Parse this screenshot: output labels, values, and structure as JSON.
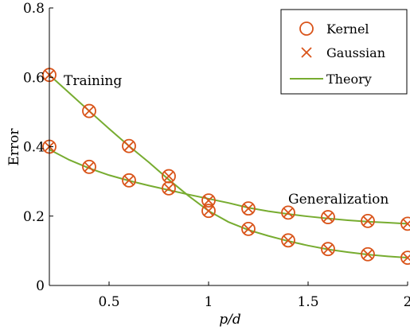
{
  "chart_data": {
    "type": "line",
    "xlabel": "p/d",
    "ylabel": "Error",
    "xlim": [
      0.2,
      2.0
    ],
    "ylim": [
      0,
      0.8
    ],
    "xticks": [
      0.5,
      1,
      1.5,
      2
    ],
    "xtick_labels": [
      "0.5",
      "1",
      "1.5",
      "2"
    ],
    "yticks": [
      0,
      0.2,
      0.4,
      0.6,
      0.8
    ],
    "ytick_labels": [
      "0",
      "0.2",
      "0.4",
      "0.6",
      "0.8"
    ],
    "grid": false,
    "legend_position": "top-right",
    "legend": [
      {
        "name": "Kernel",
        "marker": "circle"
      },
      {
        "name": "Gaussian",
        "marker": "x"
      },
      {
        "name": "Theory",
        "marker": "line"
      }
    ],
    "annotations": [
      {
        "text": "Training",
        "x": 0.24,
        "y": 0.58
      },
      {
        "text": "Generalization",
        "x": 1.44,
        "y": 0.235
      }
    ],
    "colors": {
      "marker": "#d9541a",
      "theory": "#77ac30"
    },
    "series": [
      {
        "curve": "Training",
        "x": [
          0.2,
          0.4,
          0.6,
          0.8,
          1.0,
          1.2,
          1.4,
          1.6,
          1.8,
          2.0
        ],
        "kernel": [
          0.607,
          0.503,
          0.402,
          0.315,
          0.215,
          0.163,
          0.13,
          0.105,
          0.09,
          0.08
        ],
        "gaussian": [
          0.607,
          0.503,
          0.402,
          0.315,
          0.215,
          0.163,
          0.13,
          0.105,
          0.09,
          0.08
        ],
        "theory_x": [
          0.2,
          0.3,
          0.4,
          0.5,
          0.6,
          0.7,
          0.8,
          0.9,
          1.0,
          1.1,
          1.2,
          1.3,
          1.4,
          1.5,
          1.6,
          1.7,
          1.8,
          1.9,
          2.0
        ],
        "theory_y": [
          0.607,
          0.555,
          0.503,
          0.452,
          0.402,
          0.355,
          0.305,
          0.258,
          0.215,
          0.183,
          0.16,
          0.143,
          0.128,
          0.115,
          0.104,
          0.096,
          0.089,
          0.084,
          0.08
        ]
      },
      {
        "curve": "Generalization",
        "x": [
          0.2,
          0.4,
          0.6,
          0.8,
          1.0,
          1.2,
          1.4,
          1.6,
          1.8,
          2.0
        ],
        "kernel": [
          0.4,
          0.342,
          0.303,
          0.28,
          0.245,
          0.222,
          0.21,
          0.197,
          0.186,
          0.178
        ],
        "gaussian": [
          0.4,
          0.342,
          0.303,
          0.28,
          0.245,
          0.222,
          0.21,
          0.197,
          0.186,
          0.178
        ],
        "theory_x": [
          0.2,
          0.3,
          0.4,
          0.5,
          0.6,
          0.7,
          0.8,
          0.9,
          1.0,
          1.1,
          1.2,
          1.3,
          1.4,
          1.5,
          1.6,
          1.7,
          1.8,
          1.9,
          2.0
        ],
        "theory_y": [
          0.392,
          0.362,
          0.338,
          0.318,
          0.302,
          0.288,
          0.275,
          0.262,
          0.25,
          0.238,
          0.224,
          0.214,
          0.206,
          0.199,
          0.193,
          0.188,
          0.184,
          0.181,
          0.178
        ]
      }
    ]
  }
}
